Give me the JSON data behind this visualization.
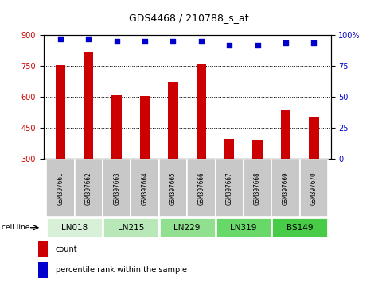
{
  "title": "GDS4468 / 210788_s_at",
  "samples": [
    "GSM397661",
    "GSM397662",
    "GSM397663",
    "GSM397664",
    "GSM397665",
    "GSM397666",
    "GSM397667",
    "GSM397668",
    "GSM397669",
    "GSM397670"
  ],
  "counts": [
    755,
    820,
    608,
    603,
    672,
    758,
    395,
    393,
    538,
    500
  ],
  "percentiles": [
    97,
    97,
    95,
    95,
    95,
    95,
    92,
    92,
    94,
    94
  ],
  "cell_lines": [
    {
      "name": "LN018",
      "span": [
        0,
        1
      ]
    },
    {
      "name": "LN215",
      "span": [
        2,
        3
      ]
    },
    {
      "name": "LN229",
      "span": [
        4,
        5
      ]
    },
    {
      "name": "LN319",
      "span": [
        6,
        7
      ]
    },
    {
      "name": "BS149",
      "span": [
        8,
        9
      ]
    }
  ],
  "cell_line_colors": [
    "#d8f0d8",
    "#b8e8b8",
    "#90e090",
    "#68d868",
    "#48cc48"
  ],
  "ylim_left": [
    300,
    900
  ],
  "yticks_left": [
    300,
    450,
    600,
    750,
    900
  ],
  "ylim_right": [
    0,
    100
  ],
  "yticks_right": [
    0,
    25,
    50,
    75,
    100
  ],
  "bar_color": "#cc0000",
  "dot_color": "#0000cc",
  "bar_width": 0.35,
  "sample_box_color": "#c8c8c8",
  "left_tick_color": "#cc0000",
  "right_tick_color": "#0000cc",
  "legend_count_color": "#cc0000",
  "legend_pct_color": "#0000cc"
}
